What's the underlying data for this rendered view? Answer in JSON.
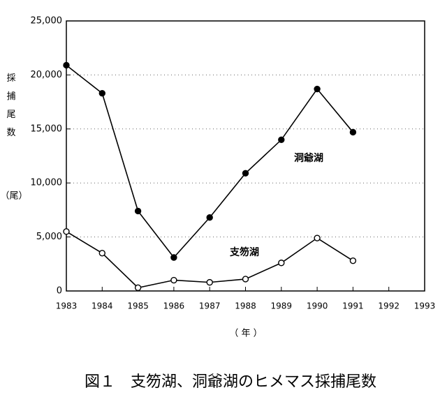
{
  "chart_data": {
    "type": "line",
    "y_label": "採捕尾数",
    "y_unit": "（尾）",
    "x_label": "（ 年 ）",
    "caption": "図１　支笏湖、洞爺湖のヒメマス採捕尾数",
    "x": [
      1983,
      1984,
      1985,
      1986,
      1987,
      1988,
      1989,
      1990,
      1991
    ],
    "series": [
      {
        "name": "洞爺湖",
        "color": "#000000",
        "marker": "filled",
        "values": [
          20900,
          18300,
          7400,
          3100,
          6800,
          10900,
          14000,
          18700,
          14700
        ]
      },
      {
        "name": "支笏湖",
        "color": "#000000",
        "marker": "open",
        "values": [
          5500,
          3500,
          300,
          1000,
          800,
          1100,
          2600,
          4900,
          2800
        ]
      }
    ],
    "xlim": [
      1983,
      1993
    ],
    "xticks": [
      1983,
      1984,
      1985,
      1986,
      1987,
      1988,
      1989,
      1990,
      1991,
      1992,
      1993
    ],
    "ylim": [
      0,
      25000
    ],
    "yticks": [
      0,
      {
        "value": 5000,
        "label": "5,000"
      },
      {
        "value": 10000,
        "label": "10,000"
      },
      {
        "value": 15000,
        "label": "15,000"
      },
      {
        "value": 20000,
        "label": "20,000"
      },
      {
        "value": 25000,
        "label": "25,000"
      }
    ],
    "grid": true
  }
}
